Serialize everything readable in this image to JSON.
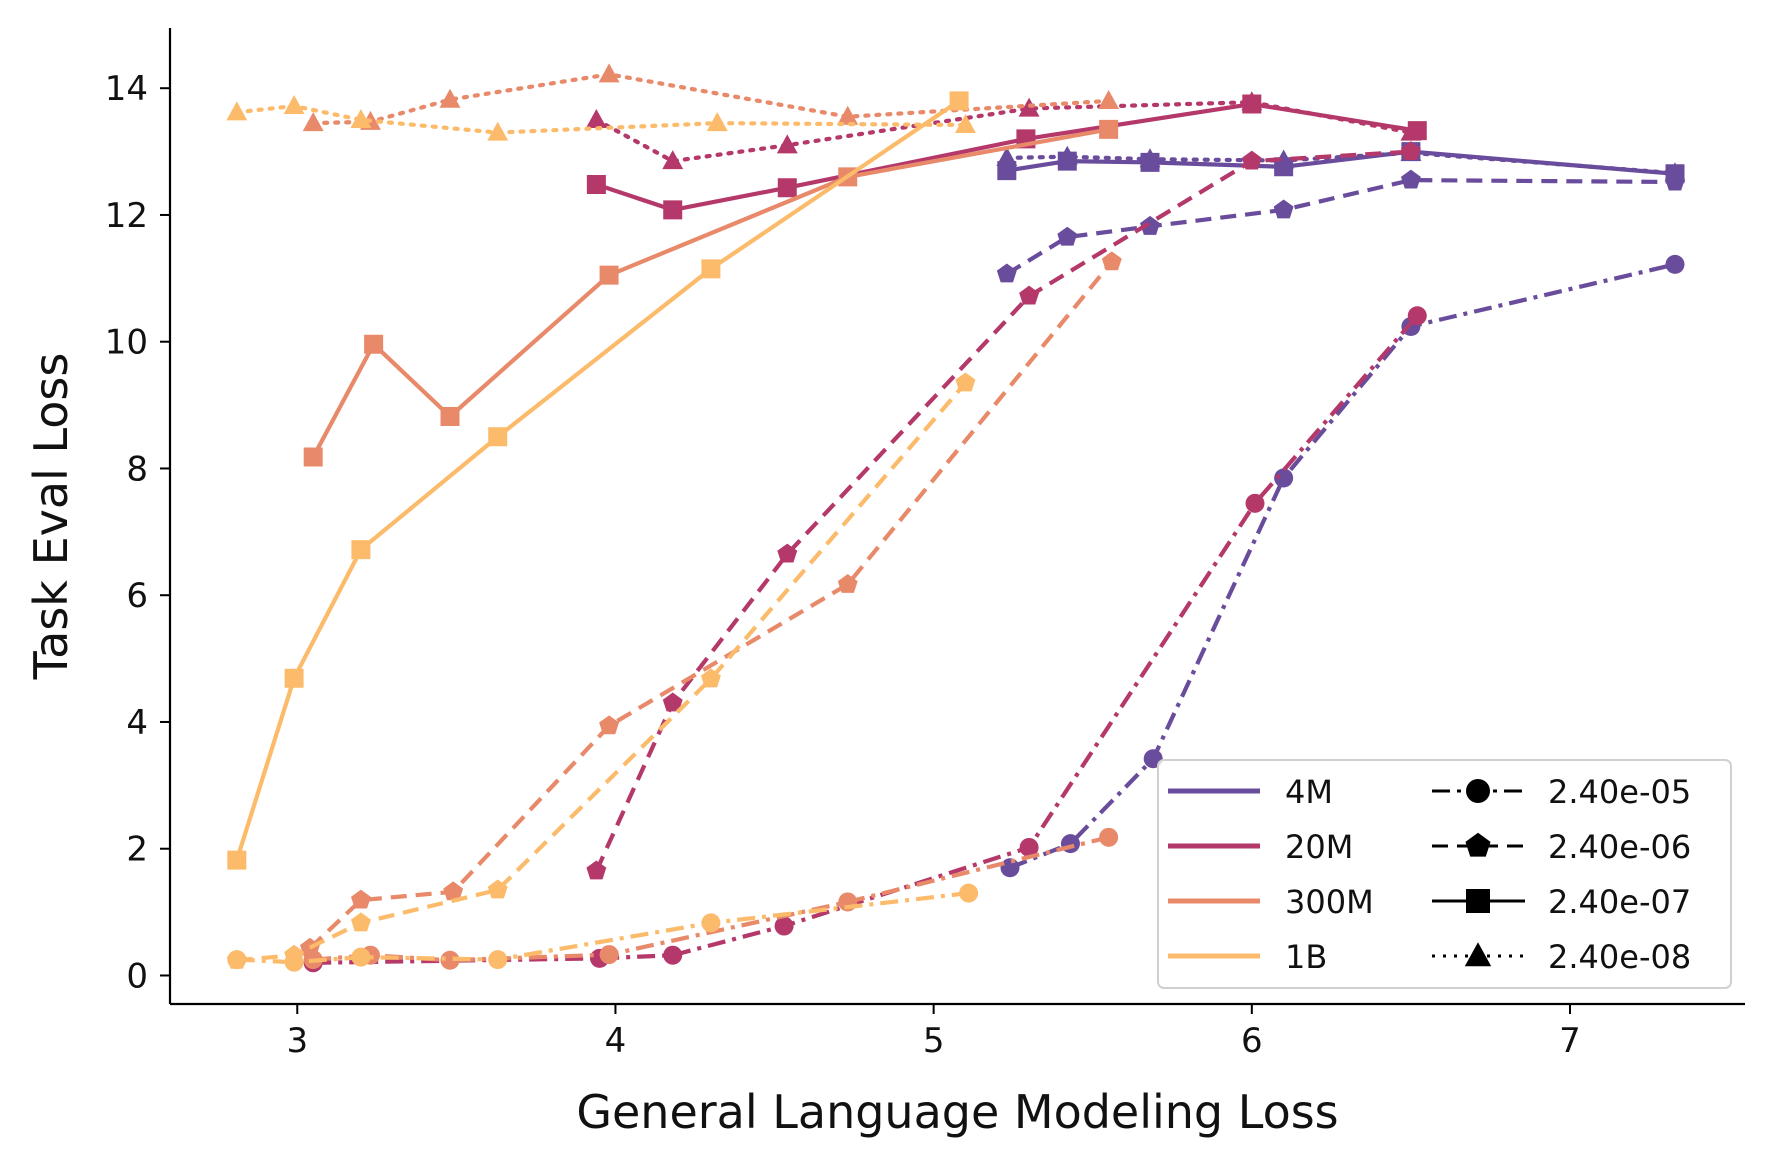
{
  "chart_data": {
    "type": "line",
    "title": "",
    "xlabel": "General Language Modeling Loss",
    "ylabel": "Task Eval Loss",
    "xlim": [
      2.6,
      7.55
    ],
    "ylim": [
      -0.45,
      14.95
    ],
    "xticks": [
      3,
      4,
      5,
      6,
      7
    ],
    "yticks": [
      0,
      2,
      4,
      6,
      8,
      10,
      12,
      14
    ],
    "grid": false,
    "legend_placement": "lower right",
    "model_colors": {
      "4M": "#6a4c9c",
      "20M": "#b5386a",
      "300M": "#e8896a",
      "1B": "#fcbb6a"
    },
    "lr_styles": {
      "2.40e-05": {
        "marker": "circle",
        "dash": "dashdot"
      },
      "2.40e-06": {
        "marker": "pentagon",
        "dash": "dashed"
      },
      "2.40e-07": {
        "marker": "square",
        "dash": "solid"
      },
      "2.40e-08": {
        "marker": "triangle",
        "dash": "dotted"
      }
    },
    "legend_models": [
      "4M",
      "20M",
      "300M",
      "1B"
    ],
    "legend_lrs": [
      "2.40e-05",
      "2.40e-06",
      "2.40e-07",
      "2.40e-08"
    ],
    "series": [
      {
        "model": "4M",
        "lr": "2.40e-05",
        "points": [
          [
            5.24,
            1.7
          ],
          [
            5.43,
            2.08
          ],
          [
            5.69,
            3.42
          ],
          [
            6.1,
            7.85
          ],
          [
            6.5,
            10.24
          ],
          [
            7.33,
            11.22
          ]
        ]
      },
      {
        "model": "4M",
        "lr": "2.40e-06",
        "points": [
          [
            5.23,
            11.07
          ],
          [
            5.42,
            11.65
          ],
          [
            5.68,
            11.82
          ],
          [
            6.1,
            12.08
          ],
          [
            6.5,
            12.55
          ],
          [
            7.33,
            12.52
          ]
        ]
      },
      {
        "model": "4M",
        "lr": "2.40e-07",
        "points": [
          [
            5.23,
            12.7
          ],
          [
            5.42,
            12.85
          ],
          [
            5.68,
            12.83
          ],
          [
            6.1,
            12.76
          ],
          [
            6.5,
            13.0
          ],
          [
            7.33,
            12.65
          ]
        ]
      },
      {
        "model": "4M",
        "lr": "2.40e-08",
        "points": [
          [
            5.23,
            12.9
          ],
          [
            5.42,
            12.92
          ],
          [
            5.68,
            12.88
          ],
          [
            6.1,
            12.86
          ],
          [
            6.5,
            12.98
          ],
          [
            7.33,
            12.66
          ]
        ]
      },
      {
        "model": "20M",
        "lr": "2.40e-05",
        "points": [
          [
            3.05,
            0.2
          ],
          [
            3.95,
            0.27
          ],
          [
            4.18,
            0.32
          ],
          [
            4.53,
            0.78
          ],
          [
            5.3,
            2.02
          ],
          [
            6.01,
            7.45
          ],
          [
            6.52,
            10.41
          ]
        ]
      },
      {
        "model": "20M",
        "lr": "2.40e-06",
        "points": [
          [
            3.94,
            1.65
          ],
          [
            4.18,
            4.3
          ],
          [
            4.54,
            6.65
          ],
          [
            5.3,
            10.72
          ],
          [
            6.0,
            12.85
          ],
          [
            6.5,
            13.0
          ]
        ]
      },
      {
        "model": "20M",
        "lr": "2.40e-07",
        "points": [
          [
            3.94,
            12.48
          ],
          [
            4.18,
            12.08
          ],
          [
            4.54,
            12.43
          ],
          [
            5.29,
            13.2
          ],
          [
            6.0,
            13.75
          ],
          [
            6.52,
            13.33
          ]
        ]
      },
      {
        "model": "20M",
        "lr": "2.40e-08",
        "points": [
          [
            3.94,
            13.5
          ],
          [
            4.18,
            12.85
          ],
          [
            4.54,
            13.1
          ],
          [
            5.3,
            13.68
          ],
          [
            6.0,
            13.78
          ],
          [
            6.5,
            13.3
          ]
        ]
      },
      {
        "model": "300M",
        "lr": "2.40e-05",
        "points": [
          [
            3.05,
            0.25
          ],
          [
            3.23,
            0.32
          ],
          [
            3.48,
            0.24
          ],
          [
            3.98,
            0.33
          ],
          [
            4.73,
            1.16
          ],
          [
            5.55,
            2.18
          ]
        ]
      },
      {
        "model": "300M",
        "lr": "2.40e-06",
        "points": [
          [
            3.04,
            0.43
          ],
          [
            3.2,
            1.19
          ],
          [
            3.49,
            1.32
          ],
          [
            3.98,
            3.94
          ],
          [
            4.73,
            6.17
          ],
          [
            5.56,
            11.26
          ]
        ]
      },
      {
        "model": "300M",
        "lr": "2.40e-07",
        "points": [
          [
            3.05,
            8.18
          ],
          [
            3.24,
            9.96
          ],
          [
            3.48,
            8.82
          ],
          [
            3.98,
            11.05
          ],
          [
            4.73,
            12.6
          ],
          [
            5.55,
            13.35
          ]
        ]
      },
      {
        "model": "300M",
        "lr": "2.40e-08",
        "points": [
          [
            3.05,
            13.45
          ],
          [
            3.23,
            13.47
          ],
          [
            3.48,
            13.82
          ],
          [
            3.98,
            14.22
          ],
          [
            4.73,
            13.55
          ],
          [
            5.55,
            13.8
          ]
        ]
      },
      {
        "model": "1B",
        "lr": "2.40e-05",
        "points": [
          [
            2.81,
            0.25
          ],
          [
            2.99,
            0.21
          ],
          [
            3.2,
            0.29
          ],
          [
            3.63,
            0.25
          ],
          [
            4.3,
            0.83
          ],
          [
            5.11,
            1.3
          ]
        ]
      },
      {
        "model": "1B",
        "lr": "2.40e-06",
        "points": [
          [
            2.81,
            0.24
          ],
          [
            2.99,
            0.32
          ],
          [
            3.2,
            0.83
          ],
          [
            3.63,
            1.35
          ],
          [
            4.3,
            4.68
          ],
          [
            5.1,
            9.35
          ]
        ]
      },
      {
        "model": "1B",
        "lr": "2.40e-07",
        "points": [
          [
            2.81,
            1.82
          ],
          [
            2.99,
            4.69
          ],
          [
            3.2,
            6.72
          ],
          [
            3.63,
            8.5
          ],
          [
            4.3,
            11.15
          ],
          [
            5.08,
            13.8
          ]
        ]
      },
      {
        "model": "1B",
        "lr": "2.40e-08",
        "points": [
          [
            2.81,
            13.62
          ],
          [
            2.99,
            13.72
          ],
          [
            3.2,
            13.5
          ],
          [
            3.63,
            13.3
          ],
          [
            4.32,
            13.45
          ],
          [
            5.1,
            13.42
          ]
        ]
      }
    ]
  }
}
